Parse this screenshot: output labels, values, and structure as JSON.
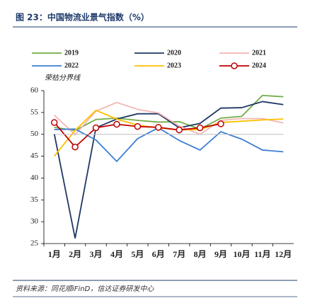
{
  "chart_data": {
    "type": "line",
    "title": "图 23：中国物流业景气指数（%）",
    "source": "资料来源：同花顺iFinD，信达证券研发中心",
    "categories": [
      "1月",
      "2月",
      "3月",
      "4月",
      "5月",
      "6月",
      "7月",
      "8月",
      "9月",
      "10月",
      "11月",
      "12月"
    ],
    "series": [
      {
        "name": "2019",
        "color": "#70ad47",
        "values": [
          51.6,
          50.9,
          53.4,
          53.7,
          53.2,
          52.8,
          52.9,
          51.2,
          53.7,
          54.1,
          58.9,
          58.6
        ]
      },
      {
        "name": "2020",
        "color": "#1f3864",
        "values": [
          50.1,
          26.2,
          51.5,
          53.5,
          54.7,
          54.7,
          51.5,
          52.5,
          56.0,
          56.1,
          57.5,
          56.8
        ]
      },
      {
        "name": "2021",
        "color": "#f4b6b6",
        "values": [
          54.4,
          49.9,
          55.3,
          57.3,
          55.7,
          54.9,
          51.9,
          50.0,
          53.2,
          53.6,
          53.6,
          52.6
        ]
      },
      {
        "name": "2022",
        "color": "#3c7fd6",
        "values": [
          51.1,
          51.2,
          48.7,
          43.8,
          49.0,
          51.5,
          48.6,
          46.4,
          50.6,
          48.9,
          46.4,
          46.0
        ]
      },
      {
        "name": "2023",
        "color": "#ffc000",
        "values": [
          45.0,
          50.9,
          55.5,
          53.5,
          52.1,
          51.5,
          51.0,
          51.1,
          52.7,
          53.0,
          53.3,
          53.5
        ]
      },
      {
        "name": "2024",
        "color": "#c00000",
        "marker": "circle",
        "values": [
          52.7,
          47.1,
          51.5,
          52.3,
          51.8,
          51.6,
          51.0,
          51.5,
          52.4,
          null,
          null,
          null
        ]
      },
      {
        "name": "荣枯分界线",
        "color": "#bfbfbf",
        "style": "reference",
        "values": [
          50,
          50,
          50,
          50,
          50,
          50,
          50,
          50,
          50,
          50,
          50,
          50
        ]
      }
    ],
    "ylim": [
      25,
      60
    ],
    "yticks": [
      25,
      30,
      35,
      40,
      45,
      50,
      55,
      60
    ]
  }
}
